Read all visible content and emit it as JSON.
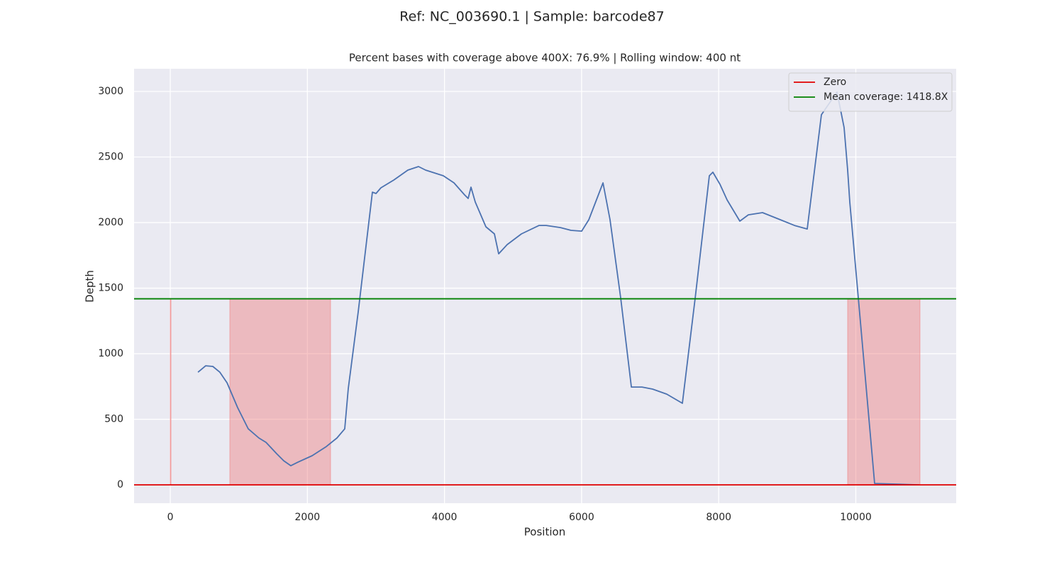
{
  "chart_data": {
    "type": "line",
    "title": "Ref: NC_003690.1 | Sample: barcode87",
    "subtitle": "Percent bases with coverage above 400X:  76.9% | Rolling window: 400 nt",
    "xlabel": "Position",
    "ylabel": "Depth",
    "x": [
      404,
      517,
      621,
      724,
      828,
      983,
      1138,
      1293,
      1397,
      1552,
      1655,
      1759,
      1862,
      2069,
      2276,
      2431,
      2545,
      2597,
      2742,
      2949,
      3001,
      3073,
      3259,
      3466,
      3621,
      3725,
      3983,
      4138,
      4294,
      4345,
      4387,
      4449,
      4604,
      4728,
      4790,
      4914,
      5122,
      5380,
      5484,
      5691,
      5846,
      6001,
      6105,
      6312,
      6415,
      6570,
      6726,
      6881,
      7036,
      7243,
      7470,
      7657,
      7863,
      7915,
      8018,
      8122,
      8308,
      8432,
      8639,
      8898,
      9105,
      9291,
      9498,
      9726,
      9829,
      9881,
      9912,
      10036,
      10274,
      10926
    ],
    "values": [
      859,
      908,
      903,
      859,
      778,
      589,
      427,
      357,
      324,
      238,
      184,
      146,
      173,
      222,
      292,
      357,
      427,
      735,
      1319,
      2232,
      2222,
      2265,
      2324,
      2400,
      2427,
      2400,
      2357,
      2303,
      2211,
      2184,
      2270,
      2157,
      1968,
      1914,
      1762,
      1832,
      1914,
      1978,
      1978,
      1962,
      1941,
      1935,
      2022,
      2303,
      2022,
      1427,
      746,
      746,
      730,
      692,
      622,
      1427,
      2357,
      2384,
      2292,
      2173,
      2011,
      2059,
      2076,
      2022,
      1978,
      1951,
      2822,
      2995,
      2724,
      2400,
      2157,
      1427,
      11,
      0
    ],
    "color": "#4c72b0",
    "hlines": [
      {
        "name": "Zero",
        "color": "#e00000",
        "value": 0
      },
      {
        "name": "Mean coverage:  1418.8X",
        "color": "#008000",
        "value": 1418.8
      }
    ],
    "spans": [
      [
        0,
        10
      ],
      [
        869,
        2338
      ],
      [
        9881,
        10936
      ]
    ],
    "span_color": "#f08080",
    "xlim": [
      -528,
      11464
    ],
    "ylim": [
      -140,
      3173
    ],
    "xticks": [
      0,
      2000,
      4000,
      6000,
      8000,
      10000
    ],
    "yticks": [
      0,
      500,
      1000,
      1500,
      2000,
      2500,
      3000
    ],
    "grid": true,
    "legend": "upper right"
  }
}
